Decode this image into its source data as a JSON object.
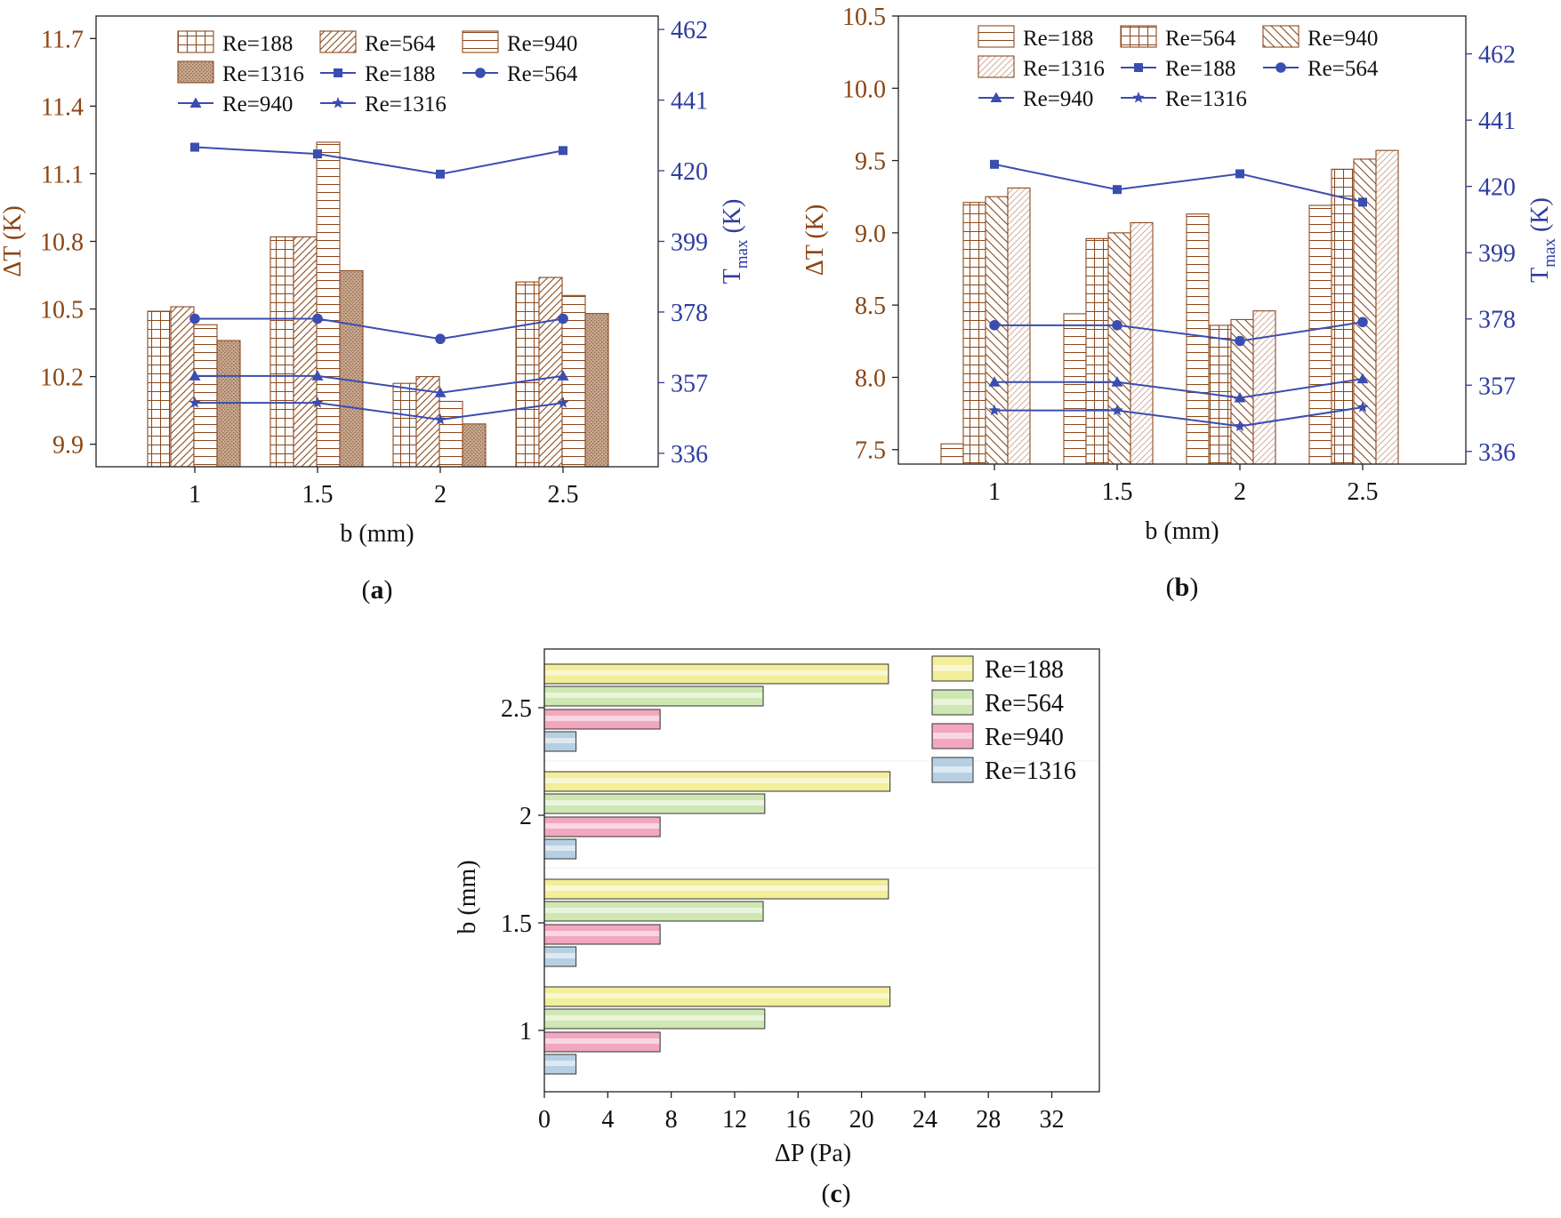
{
  "colors": {
    "left_axis": "#8B4513",
    "right_axis": "#2E3D9E",
    "line": "#3A4DB0",
    "bar_stroke": "#8B4A1F",
    "bar_fill_1316": "#C9A88E",
    "hbar_188": "#F2EE9A",
    "hbar_564": "#CFE7B3",
    "hbar_940": "#F2A7BE",
    "hbar_1316": "#B7CFE2"
  },
  "chart_data": [
    {
      "id": "a",
      "type": "bar+line",
      "panel_label": "a",
      "categories": [
        "1",
        "1.5",
        "2",
        "2.5"
      ],
      "xlabel": "b (mm)",
      "ylabel": "ΔT (K)",
      "y2label_main": "T",
      "y2label_sub": "max",
      "y2label_tail": " (K)",
      "ylim": [
        9.8,
        11.8
      ],
      "yticks": [
        "9.9",
        "10.2",
        "10.5",
        "10.8",
        "11.1",
        "11.4",
        "11.7"
      ],
      "y2lim": [
        332,
        466
      ],
      "y2ticks": [
        "336",
        "357",
        "378",
        "399",
        "420",
        "441",
        "462"
      ],
      "bar_series": [
        {
          "name": "Re=188",
          "pattern": "grid",
          "values": [
            10.49,
            10.82,
            10.17,
            10.62
          ]
        },
        {
          "name": "Re=564",
          "pattern": "diag",
          "values": [
            10.51,
            10.82,
            10.2,
            10.64
          ]
        },
        {
          "name": "Re=940",
          "pattern": "hlines",
          "values": [
            10.43,
            11.24,
            10.09,
            10.56
          ]
        },
        {
          "name": "Re=1316",
          "pattern": "dots",
          "values": [
            10.36,
            10.67,
            9.99,
            10.48
          ]
        }
      ],
      "line_series": [
        {
          "name": "Re=188",
          "marker": "square",
          "values": [
            427,
            425,
            419,
            426
          ]
        },
        {
          "name": "Re=564",
          "marker": "circle",
          "values": [
            376,
            376,
            370,
            376
          ]
        },
        {
          "name": "Re=940",
          "marker": "triangle",
          "values": [
            359,
            359,
            354,
            359
          ]
        },
        {
          "name": "Re=1316",
          "marker": "star",
          "values": [
            351,
            351,
            346,
            351
          ]
        }
      ]
    },
    {
      "id": "b",
      "type": "bar+line",
      "panel_label": "b",
      "categories": [
        "1",
        "1.5",
        "2",
        "2.5"
      ],
      "xlabel": "b (mm)",
      "ylabel": "ΔT (K)",
      "y2label_main": "T",
      "y2label_sub": "max",
      "y2label_tail": " (K)",
      "ylim": [
        7.4,
        10.5
      ],
      "yticks": [
        "7.5",
        "8.0",
        "8.5",
        "9.0",
        "9.5",
        "10.0",
        "10.5"
      ],
      "y2lim": [
        332,
        474
      ],
      "y2ticks": [
        "336",
        "357",
        "378",
        "399",
        "420",
        "441",
        "462"
      ],
      "bar_series": [
        {
          "name": "Re=188",
          "pattern": "hlines",
          "values": [
            7.54,
            8.44,
            9.13,
            9.19
          ]
        },
        {
          "name": "Re=564",
          "pattern": "grid",
          "values": [
            9.21,
            8.96,
            8.36,
            9.44
          ]
        },
        {
          "name": "Re=940",
          "pattern": "backdiag",
          "values": [
            9.25,
            9.0,
            8.4,
            9.51
          ]
        },
        {
          "name": "Re=1316",
          "pattern": "lightdiag",
          "values": [
            9.31,
            9.07,
            8.46,
            9.57
          ]
        }
      ],
      "line_series": [
        {
          "name": "Re=188",
          "marker": "square",
          "values": [
            427,
            419,
            424,
            415
          ]
        },
        {
          "name": "Re=564",
          "marker": "circle",
          "values": [
            376,
            376,
            371,
            377
          ]
        },
        {
          "name": "Re=940",
          "marker": "triangle",
          "values": [
            358,
            358,
            353,
            359
          ]
        },
        {
          "name": "Re=1316",
          "marker": "star",
          "values": [
            349,
            349,
            344,
            350
          ]
        }
      ]
    },
    {
      "id": "c",
      "type": "bar",
      "orientation": "horizontal",
      "panel_label": "c",
      "categories": [
        "1",
        "1.5",
        "2",
        "2.5"
      ],
      "xlabel": "ΔP (Pa)",
      "ylabel": "b (mm)",
      "xlim": [
        0,
        35
      ],
      "xticks": [
        "0",
        "4",
        "8",
        "12",
        "16",
        "20",
        "24",
        "28",
        "32"
      ],
      "series": [
        {
          "name": "Re=188",
          "values": [
            21.8,
            21.7,
            21.8,
            21.7
          ]
        },
        {
          "name": "Re=564",
          "values": [
            13.9,
            13.8,
            13.9,
            13.8
          ]
        },
        {
          "name": "Re=940",
          "values": [
            7.3,
            7.3,
            7.3,
            7.3
          ]
        },
        {
          "name": "Re=1316",
          "values": [
            2.0,
            2.0,
            2.0,
            2.0
          ]
        }
      ]
    }
  ]
}
